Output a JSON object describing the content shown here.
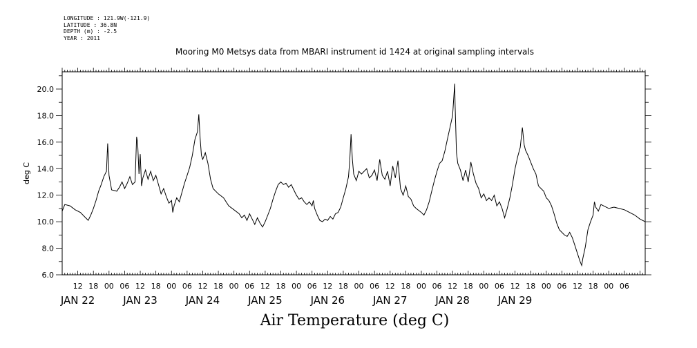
{
  "meta": {
    "longitude": "LONGITUDE : 121.9W(-121.9)",
    "latitude": "LATITUDE : 36.8N",
    "depth": "DEPTH (m) : -2.5",
    "year": "YEAR : 2011"
  },
  "chart_data": {
    "type": "line",
    "title": "Mooring M0 Metsys data from MBARI instrument id 1424 at original sampling intervals",
    "footer_label": "Air Temperature (deg C)",
    "ylabel": "deg C",
    "ylim": [
      6.0,
      21.3
    ],
    "y_ticks": [
      "6.0",
      "8.0",
      "10.0",
      "12.0",
      "14.0",
      "16.0",
      "18.0",
      "20.0"
    ],
    "x_range_hours": [
      6,
      230
    ],
    "hour_ticks": [
      "12",
      "18",
      "00",
      "06",
      "12",
      "18",
      "00",
      "06",
      "12",
      "18",
      "00",
      "06",
      "12",
      "18",
      "00",
      "06",
      "12",
      "18",
      "00",
      "06",
      "12",
      "18",
      "00",
      "06",
      "12",
      "18",
      "00",
      "06",
      "12",
      "18",
      "00",
      "06",
      "12",
      "18",
      "00",
      "06"
    ],
    "day_labels": [
      "JAN 22",
      "JAN 23",
      "JAN 24",
      "JAN 25",
      "JAN 26",
      "JAN 27",
      "JAN 28",
      "JAN 29"
    ],
    "series": [
      {
        "values": [
          [
            6,
            10.8
          ],
          [
            7,
            11.3
          ],
          [
            9,
            11.2
          ],
          [
            11,
            10.9
          ],
          [
            13,
            10.7
          ],
          [
            15,
            10.3
          ],
          [
            16,
            10.1
          ],
          [
            17,
            10.5
          ],
          [
            18,
            11.0
          ],
          [
            19,
            11.6
          ],
          [
            20,
            12.3
          ],
          [
            21,
            12.8
          ],
          [
            22,
            13.4
          ],
          [
            23,
            13.8
          ],
          [
            23.5,
            15.9
          ],
          [
            24,
            13.5
          ],
          [
            25,
            12.4
          ],
          [
            27,
            12.3
          ],
          [
            28,
            12.6
          ],
          [
            29,
            13.0
          ],
          [
            30,
            12.5
          ],
          [
            31,
            12.9
          ],
          [
            32,
            13.4
          ],
          [
            33,
            12.8
          ],
          [
            34,
            13.0
          ],
          [
            34.6,
            16.4
          ],
          [
            35,
            15.9
          ],
          [
            35.5,
            13.6
          ],
          [
            36,
            15.1
          ],
          [
            36.5,
            12.7
          ],
          [
            37,
            13.3
          ],
          [
            38,
            13.9
          ],
          [
            39,
            13.2
          ],
          [
            40,
            13.8
          ],
          [
            41,
            13.1
          ],
          [
            42,
            13.5
          ],
          [
            43,
            12.8
          ],
          [
            44,
            12.1
          ],
          [
            45,
            12.5
          ],
          [
            46,
            11.9
          ],
          [
            47,
            11.4
          ],
          [
            48,
            11.6
          ],
          [
            48.5,
            10.7
          ],
          [
            49,
            11.2
          ],
          [
            50,
            11.8
          ],
          [
            51,
            11.5
          ],
          [
            52,
            12.2
          ],
          [
            53,
            12.9
          ],
          [
            54,
            13.5
          ],
          [
            55,
            14.1
          ],
          [
            56,
            15.0
          ],
          [
            57,
            16.2
          ],
          [
            58,
            16.8
          ],
          [
            58.5,
            18.1
          ],
          [
            59,
            16.3
          ],
          [
            59.5,
            15.0
          ],
          [
            60,
            14.7
          ],
          [
            61,
            15.2
          ],
          [
            62,
            14.4
          ],
          [
            63,
            13.2
          ],
          [
            64,
            12.5
          ],
          [
            66,
            12.1
          ],
          [
            68,
            11.8
          ],
          [
            70,
            11.2
          ],
          [
            72,
            10.9
          ],
          [
            74,
            10.6
          ],
          [
            75,
            10.3
          ],
          [
            76,
            10.5
          ],
          [
            77,
            10.1
          ],
          [
            78,
            10.6
          ],
          [
            79,
            10.2
          ],
          [
            80,
            9.8
          ],
          [
            81,
            10.3
          ],
          [
            82,
            9.9
          ],
          [
            83,
            9.6
          ],
          [
            84,
            10.0
          ],
          [
            85,
            10.5
          ],
          [
            86,
            11.0
          ],
          [
            87,
            11.7
          ],
          [
            88,
            12.3
          ],
          [
            89,
            12.8
          ],
          [
            90,
            13.0
          ],
          [
            91,
            12.8
          ],
          [
            92,
            12.9
          ],
          [
            93,
            12.6
          ],
          [
            94,
            12.8
          ],
          [
            95,
            12.4
          ],
          [
            96,
            12.0
          ],
          [
            97,
            11.7
          ],
          [
            98,
            11.8
          ],
          [
            99,
            11.5
          ],
          [
            100,
            11.3
          ],
          [
            101,
            11.5
          ],
          [
            102,
            11.2
          ],
          [
            102.5,
            11.6
          ],
          [
            103,
            11.0
          ],
          [
            104,
            10.5
          ],
          [
            105,
            10.1
          ],
          [
            106,
            10.0
          ],
          [
            107,
            10.2
          ],
          [
            108,
            10.1
          ],
          [
            109,
            10.4
          ],
          [
            110,
            10.2
          ],
          [
            111,
            10.6
          ],
          [
            112,
            10.7
          ],
          [
            113,
            11.1
          ],
          [
            114,
            11.8
          ],
          [
            115,
            12.5
          ],
          [
            116,
            13.4
          ],
          [
            116.5,
            14.6
          ],
          [
            117,
            16.6
          ],
          [
            117.5,
            14.7
          ],
          [
            118,
            13.6
          ],
          [
            119,
            13.1
          ],
          [
            120,
            13.8
          ],
          [
            121,
            13.6
          ],
          [
            122,
            13.8
          ],
          [
            123,
            14.0
          ],
          [
            124,
            13.3
          ],
          [
            125,
            13.5
          ],
          [
            126,
            13.9
          ],
          [
            127,
            13.1
          ],
          [
            128,
            14.7
          ],
          [
            129,
            13.5
          ],
          [
            130,
            13.2
          ],
          [
            131,
            13.8
          ],
          [
            132,
            12.7
          ],
          [
            133,
            14.2
          ],
          [
            134,
            13.3
          ],
          [
            135,
            14.6
          ],
          [
            136,
            12.5
          ],
          [
            137,
            12.0
          ],
          [
            138,
            12.7
          ],
          [
            139,
            11.9
          ],
          [
            140,
            11.7
          ],
          [
            141,
            11.2
          ],
          [
            142,
            11.0
          ],
          [
            144,
            10.7
          ],
          [
            145,
            10.5
          ],
          [
            146,
            10.9
          ],
          [
            147,
            11.5
          ],
          [
            148,
            12.3
          ],
          [
            149,
            13.1
          ],
          [
            150,
            13.8
          ],
          [
            151,
            14.4
          ],
          [
            152,
            14.6
          ],
          [
            153,
            15.3
          ],
          [
            154,
            16.2
          ],
          [
            155,
            17.1
          ],
          [
            156,
            18.0
          ],
          [
            156.8,
            20.4
          ],
          [
            157,
            18.7
          ],
          [
            157.5,
            15.2
          ],
          [
            158,
            14.4
          ],
          [
            159,
            13.9
          ],
          [
            160,
            13.1
          ],
          [
            161,
            13.9
          ],
          [
            162,
            13.0
          ],
          [
            163,
            14.5
          ],
          [
            164,
            13.6
          ],
          [
            165,
            12.9
          ],
          [
            166,
            12.5
          ],
          [
            167,
            11.8
          ],
          [
            168,
            12.1
          ],
          [
            169,
            11.6
          ],
          [
            170,
            11.8
          ],
          [
            171,
            11.6
          ],
          [
            172,
            12.0
          ],
          [
            173,
            11.2
          ],
          [
            174,
            11.5
          ],
          [
            175,
            11.0
          ],
          [
            176,
            10.3
          ],
          [
            177,
            11.0
          ],
          [
            178,
            11.8
          ],
          [
            179,
            12.8
          ],
          [
            180,
            14.0
          ],
          [
            181,
            14.9
          ],
          [
            182,
            15.6
          ],
          [
            182.8,
            17.1
          ],
          [
            183.5,
            15.8
          ],
          [
            184,
            15.4
          ],
          [
            185,
            15.0
          ],
          [
            186,
            14.5
          ],
          [
            187,
            14.0
          ],
          [
            188,
            13.6
          ],
          [
            189,
            12.7
          ],
          [
            190,
            12.5
          ],
          [
            191,
            12.3
          ],
          [
            192,
            11.8
          ],
          [
            193,
            11.6
          ],
          [
            194,
            11.2
          ],
          [
            195,
            10.6
          ],
          [
            196,
            9.9
          ],
          [
            197,
            9.4
          ],
          [
            198,
            9.2
          ],
          [
            199,
            9.0
          ],
          [
            200,
            8.9
          ],
          [
            201,
            9.2
          ],
          [
            202,
            8.8
          ],
          [
            203,
            8.2
          ],
          [
            204,
            7.6
          ],
          [
            205,
            7.0
          ],
          [
            205.6,
            6.7
          ],
          [
            206,
            7.2
          ],
          [
            207,
            8.1
          ],
          [
            208,
            9.4
          ],
          [
            209,
            10.0
          ],
          [
            210,
            10.5
          ],
          [
            210.5,
            11.5
          ],
          [
            211,
            11.1
          ],
          [
            212,
            10.8
          ],
          [
            213,
            11.3
          ],
          [
            214,
            11.2
          ],
          [
            216,
            11.0
          ],
          [
            218,
            11.1
          ],
          [
            220,
            11.0
          ],
          [
            222,
            10.9
          ],
          [
            224,
            10.7
          ],
          [
            226,
            10.5
          ],
          [
            228,
            10.2
          ],
          [
            230,
            10.0
          ]
        ]
      }
    ]
  }
}
